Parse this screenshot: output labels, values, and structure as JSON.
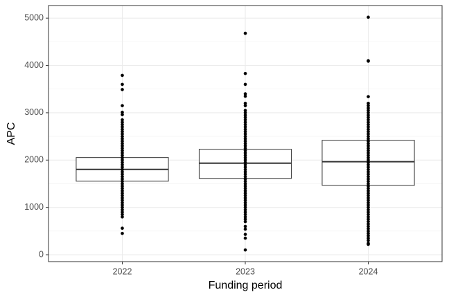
{
  "chart_data": {
    "type": "boxplot",
    "x_label": "Funding period",
    "y_label": "APC",
    "categories": [
      "2022",
      "2023",
      "2024"
    ],
    "boxes": [
      {
        "q1": 1554,
        "median": 1803,
        "q3": 2053
      },
      {
        "q1": 1613,
        "median": 1935,
        "q3": 2229
      },
      {
        "q1": 1466,
        "median": 1965,
        "q3": 2419
      }
    ],
    "points": [
      [
        3790,
        3600,
        3490,
        3150,
        3010,
        2960,
        2850,
        2800,
        2750,
        2700,
        2650,
        2600,
        2550,
        2500,
        2450,
        2400,
        2350,
        2300,
        2250,
        2200,
        2150,
        2100,
        2050,
        2000,
        1950,
        1900,
        1850,
        1800,
        1750,
        1700,
        1650,
        1600,
        1550,
        1500,
        1450,
        1400,
        1350,
        1300,
        1250,
        1200,
        1150,
        1100,
        1050,
        1000,
        950,
        900,
        850,
        800,
        560,
        450
      ],
      [
        4680,
        3830,
        3600,
        3400,
        3350,
        3200,
        3150,
        3050,
        3000,
        2950,
        2900,
        2850,
        2800,
        2750,
        2700,
        2650,
        2600,
        2550,
        2500,
        2450,
        2400,
        2350,
        2300,
        2250,
        2200,
        2150,
        2100,
        2050,
        2000,
        1950,
        1900,
        1850,
        1800,
        1750,
        1700,
        1650,
        1600,
        1550,
        1500,
        1450,
        1400,
        1350,
        1300,
        1250,
        1200,
        1150,
        1100,
        1050,
        1000,
        950,
        900,
        850,
        800,
        750,
        700,
        600,
        540,
        430,
        350,
        100
      ],
      [
        5020,
        4100,
        4090,
        3340,
        3200,
        3150,
        3100,
        3050,
        3000,
        2950,
        2900,
        2850,
        2800,
        2750,
        2700,
        2650,
        2600,
        2550,
        2500,
        2450,
        2400,
        2350,
        2300,
        2250,
        2200,
        2150,
        2100,
        2050,
        2000,
        1950,
        1900,
        1850,
        1800,
        1750,
        1700,
        1650,
        1600,
        1550,
        1500,
        1450,
        1400,
        1350,
        1300,
        1250,
        1200,
        1150,
        1100,
        1050,
        1000,
        950,
        900,
        850,
        800,
        750,
        700,
        650,
        600,
        550,
        500,
        450,
        400,
        350,
        300,
        240,
        220
      ]
    ],
    "point_color": "#000000",
    "box_fill": "#ffffff",
    "box_color": "#333333",
    "ylim": [
      -146,
      5266
    ],
    "yticks": [
      0,
      1000,
      2000,
      3000,
      4000,
      5000
    ],
    "minor_yticks": [
      500,
      1500,
      2500,
      3500,
      4500
    ],
    "grid": true
  }
}
